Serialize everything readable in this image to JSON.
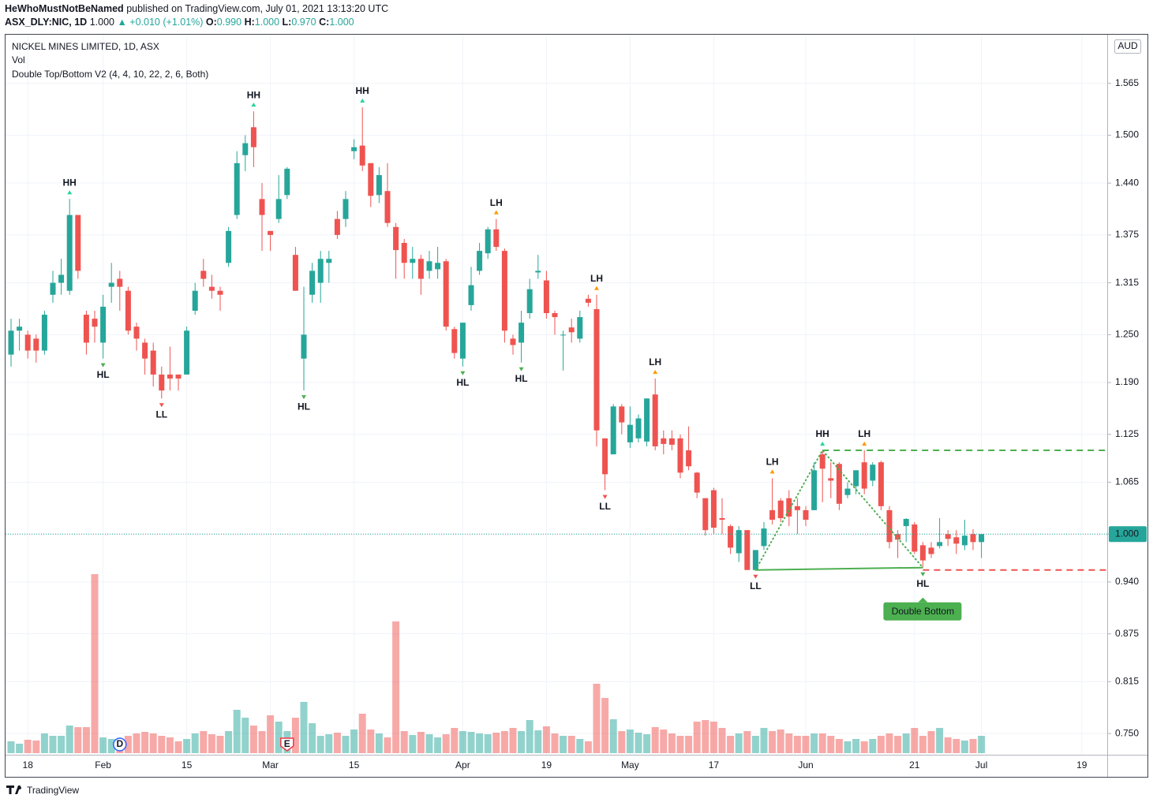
{
  "header": {
    "author": "HeWhoMustNotBeNamed",
    "published": "published on TradingView.com, July 01, 2021 13:13:20 UTC",
    "symbol": "ASX_DLY:NIC, 1D",
    "price": "1.000",
    "change": "▲ +0.010 (+1.01%)",
    "ohlc": [
      {
        "key": "O:",
        "value": "0.990"
      },
      {
        "key": "H:",
        "value": "1.000"
      },
      {
        "key": "L:",
        "value": "0.970"
      },
      {
        "key": "C:",
        "value": "1.000"
      }
    ]
  },
  "footer": "TradingView",
  "chart_data": {
    "type": "candlestick",
    "title": "NICKEL MINES LIMITED, 1D, ASX",
    "volume_label": "Vol",
    "indicator_label": "Double Top/Bottom V2 (4, 4, 10, 22, 2, 6, Both)",
    "currency": "AUD",
    "up_color": "#26a69a",
    "down_color": "#ef5350",
    "grid": true,
    "categories": [
      null,
      null,
      "18",
      null,
      null,
      null,
      null,
      null,
      null,
      null,
      null,
      "Feb",
      null,
      null,
      null,
      null,
      null,
      null,
      null,
      null,
      null,
      "15",
      null,
      null,
      null,
      null,
      null,
      null,
      null,
      null,
      null,
      "Mar",
      null,
      null,
      null,
      null,
      null,
      null,
      null,
      null,
      null,
      "15",
      null,
      null,
      null,
      null,
      null,
      null,
      null,
      null,
      null,
      null,
      null,
      null,
      "Apr",
      null,
      null,
      null,
      null,
      null,
      null,
      null,
      null,
      null,
      "19",
      null,
      null,
      null,
      null,
      null,
      null,
      null,
      null,
      null,
      "May",
      null,
      null,
      null,
      null,
      null,
      null,
      null,
      null,
      null,
      "17",
      null,
      null,
      null,
      null,
      null,
      null,
      null,
      null,
      null,
      null,
      "Jun",
      null,
      null,
      null,
      null,
      null,
      null,
      null,
      null,
      null,
      null,
      null,
      null,
      "21",
      null,
      null,
      null,
      null,
      null,
      null,
      null,
      "Jul",
      null,
      null,
      null,
      null,
      null,
      null,
      null,
      null,
      null,
      null,
      null,
      "19"
    ],
    "open": [
      1.225,
      1.255,
      1.25,
      1.245,
      1.23,
      1.3,
      1.315,
      1.305,
      1.4,
      1.275,
      1.27,
      1.24,
      1.31,
      1.32,
      1.305,
      1.26,
      1.24,
      1.23,
      1.2,
      1.2,
      1.2,
      1.2,
      1.28,
      1.33,
      1.31,
      1.305,
      1.34,
      1.4,
      1.475,
      1.51,
      1.42,
      1.38,
      1.395,
      1.425,
      1.35,
      1.22,
      1.3,
      1.315,
      1.34,
      1.395,
      1.395,
      1.48,
      1.487,
      1.465,
      1.425,
      1.43,
      1.385,
      1.365,
      1.34,
      1.345,
      1.33,
      1.332,
      1.342,
      1.257,
      1.22,
      1.287,
      1.33,
      1.352,
      1.382,
      1.355,
      1.245,
      1.24,
      1.277,
      1.328,
      1.318,
      1.277,
      1.249,
      1.259,
      1.245,
      1.295,
      1.282,
      1.12,
      1.1,
      1.16,
      1.115,
      1.12,
      1.116,
      1.175,
      1.12,
      1.12,
      1.12,
      1.105,
      1.077,
      1.045,
      1.055,
      1.02,
      1.01,
      0.976,
      1.005,
      0.955,
      0.985,
      1.03,
      1.042,
      1.045,
      1.035,
      1.03,
      1.03,
      1.1,
      1.07,
      1.088,
      1.049,
      1.06,
      1.09,
      1.067,
      1.09,
      1.03,
      1.0,
      1.01,
      1.012,
      0.986,
      0.983,
      0.985,
      1.0,
      0.996,
      0.986,
      1.0,
      0.99,
      null,
      null,
      null,
      null,
      null,
      null,
      null,
      null,
      null,
      null,
      null,
      null
    ],
    "high": [
      1.27,
      1.27,
      1.255,
      1.25,
      1.28,
      1.33,
      1.345,
      1.42,
      1.4,
      1.28,
      1.28,
      1.3,
      1.34,
      1.33,
      1.31,
      1.265,
      1.245,
      1.24,
      1.21,
      1.235,
      1.2,
      1.26,
      1.315,
      1.345,
      1.325,
      1.31,
      1.385,
      1.48,
      1.5,
      1.53,
      1.44,
      1.38,
      1.45,
      1.46,
      1.36,
      1.31,
      1.34,
      1.355,
      1.355,
      1.405,
      1.43,
      1.495,
      1.535,
      1.465,
      1.46,
      1.465,
      1.39,
      1.37,
      1.36,
      1.35,
      1.355,
      1.36,
      1.345,
      1.26,
      1.265,
      1.335,
      1.365,
      1.385,
      1.395,
      1.358,
      1.25,
      1.28,
      1.32,
      1.35,
      1.33,
      1.28,
      1.255,
      1.27,
      1.28,
      1.3,
      1.3,
      1.12,
      1.163,
      1.163,
      1.16,
      1.15,
      1.17,
      1.195,
      1.13,
      1.13,
      1.125,
      1.135,
      1.078,
      1.045,
      1.058,
      1.045,
      1.012,
      1.01,
      1.005,
      0.98,
      1.015,
      1.07,
      1.045,
      1.055,
      1.045,
      1.035,
      1.09,
      1.105,
      1.09,
      1.09,
      1.065,
      1.08,
      1.105,
      1.09,
      1.092,
      1.035,
      1.005,
      1.02,
      1.015,
      0.99,
      0.99,
      1.02,
      1.005,
      1.005,
      1.018,
      1.006,
      1.0,
      null,
      null,
      null,
      null,
      null,
      null,
      null,
      null,
      null,
      null,
      null,
      null
    ],
    "low": [
      1.21,
      1.23,
      1.22,
      1.215,
      1.225,
      1.29,
      1.3,
      1.3,
      1.32,
      1.225,
      1.24,
      1.22,
      1.29,
      1.28,
      1.25,
      1.23,
      1.2,
      1.185,
      1.17,
      1.18,
      1.18,
      1.2,
      1.275,
      1.31,
      1.295,
      1.28,
      1.335,
      1.395,
      1.455,
      1.46,
      1.355,
      1.355,
      1.39,
      1.42,
      1.305,
      1.18,
      1.29,
      1.29,
      1.315,
      1.37,
      1.385,
      1.47,
      1.455,
      1.41,
      1.415,
      1.385,
      1.32,
      1.32,
      1.32,
      1.3,
      1.32,
      1.32,
      1.255,
      1.22,
      1.21,
      1.28,
      1.325,
      1.345,
      1.355,
      1.24,
      1.225,
      1.215,
      1.27,
      1.32,
      1.27,
      1.25,
      1.205,
      1.24,
      1.24,
      1.285,
      1.11,
      1.055,
      1.1,
      1.125,
      1.108,
      1.115,
      1.11,
      1.105,
      1.1,
      1.105,
      1.07,
      1.08,
      1.045,
      0.998,
      1.0,
      1.0,
      0.975,
      0.965,
      0.955,
      0.955,
      0.98,
      1.012,
      1.015,
      1.01,
      1.0,
      1.01,
      1.03,
      1.04,
      1.045,
      1.03,
      1.045,
      1.05,
      1.05,
      1.06,
      1.03,
      0.982,
      0.97,
      0.99,
      0.975,
      0.958,
      0.97,
      0.982,
      0.985,
      0.975,
      0.98,
      0.98,
      0.97,
      null,
      null,
      null,
      null,
      null,
      null,
      null,
      null,
      null,
      null,
      null,
      null
    ],
    "close": [
      1.255,
      1.26,
      1.23,
      1.23,
      1.275,
      1.315,
      1.325,
      1.4,
      1.33,
      1.24,
      1.26,
      1.285,
      1.315,
      1.31,
      1.255,
      1.245,
      1.22,
      1.2,
      1.18,
      1.195,
      1.195,
      1.255,
      1.305,
      1.32,
      1.305,
      1.3,
      1.38,
      1.465,
      1.49,
      1.485,
      1.4,
      1.375,
      1.42,
      1.458,
      1.305,
      1.25,
      1.33,
      1.345,
      1.345,
      1.375,
      1.42,
      1.485,
      1.462,
      1.424,
      1.45,
      1.39,
      1.356,
      1.34,
      1.345,
      1.32,
      1.342,
      1.34,
      1.26,
      1.227,
      1.265,
      1.312,
      1.355,
      1.382,
      1.36,
      1.255,
      1.237,
      1.265,
      1.307,
      1.33,
      1.277,
      1.272,
      1.25,
      1.253,
      1.272,
      1.29,
      1.13,
      1.075,
      1.16,
      1.14,
      1.137,
      1.145,
      1.17,
      1.11,
      1.113,
      1.112,
      1.077,
      1.085,
      1.052,
      1.005,
      1.008,
      1.018,
      0.983,
      1.005,
      0.955,
      0.98,
      1.007,
      1.018,
      1.02,
      1.022,
      1.03,
      1.018,
      1.08,
      1.082,
      1.067,
      1.038,
      1.057,
      1.08,
      1.057,
      1.087,
      1.035,
      0.99,
      0.993,
      1.019,
      0.978,
      0.967,
      0.975,
      0.99,
      0.994,
      0.988,
      0.998,
      0.99,
      1.0,
      null,
      null,
      null,
      null,
      null,
      null,
      null,
      null,
      null,
      null,
      null,
      null
    ],
    "volume": [
      15,
      12,
      17,
      16,
      25,
      22,
      22,
      35,
      33,
      33,
      227,
      20,
      18,
      18,
      22,
      25,
      27,
      25,
      22,
      20,
      15,
      18,
      25,
      28,
      24,
      22,
      28,
      55,
      45,
      35,
      28,
      48,
      40,
      28,
      45,
      65,
      38,
      22,
      24,
      26,
      22,
      30,
      50,
      30,
      25,
      20,
      167,
      28,
      23,
      27,
      24,
      20,
      24,
      32,
      28,
      27,
      25,
      24,
      26,
      28,
      32,
      28,
      42,
      29,
      34,
      25,
      22,
      22,
      18,
      15,
      88,
      70,
      43,
      28,
      30,
      26,
      24,
      33,
      30,
      25,
      22,
      22,
      40,
      42,
      40,
      32,
      22,
      25,
      28,
      22,
      32,
      28,
      30,
      25,
      22,
      22,
      25,
      25,
      22,
      18,
      15,
      18,
      15,
      18,
      22,
      25,
      22,
      25,
      32,
      22,
      28,
      32,
      20,
      18,
      16,
      18,
      22,
      null,
      null,
      null,
      null,
      null,
      null,
      null,
      null,
      null,
      null,
      null,
      null
    ],
    "ylim": [
      0.7234,
      1.626
    ],
    "yticks": [
      {
        "value": 0.75,
        "label": "0.750"
      },
      {
        "value": 0.815,
        "label": "0.815"
      },
      {
        "value": 0.875,
        "label": "0.875"
      },
      {
        "value": 0.94,
        "label": "0.940"
      },
      {
        "value": 1.0,
        "label": "1.000"
      },
      {
        "value": 1.065,
        "label": "1.065"
      },
      {
        "value": 1.125,
        "label": "1.125"
      },
      {
        "value": 1.19,
        "label": "1.190"
      },
      {
        "value": 1.25,
        "label": "1.250"
      },
      {
        "value": 1.315,
        "label": "1.315"
      },
      {
        "value": 1.375,
        "label": "1.375"
      },
      {
        "value": 1.44,
        "label": "1.440"
      },
      {
        "value": 1.5,
        "label": "1.500"
      },
      {
        "value": 1.565,
        "label": "1.565"
      }
    ],
    "last_price": {
      "value": 1.0,
      "label": "1.000"
    },
    "pivots": [
      {
        "label": "HH",
        "bar": 7,
        "position": "above",
        "color": "#22d69a"
      },
      {
        "label": "HL",
        "bar": 11,
        "position": "below",
        "color": "#4caf50"
      },
      {
        "label": "LL",
        "bar": 18,
        "position": "below",
        "color": "#ef5350"
      },
      {
        "label": "HH",
        "bar": 29,
        "position": "above",
        "color": "#22d69a"
      },
      {
        "label": "HL",
        "bar": 35,
        "position": "below",
        "color": "#4caf50"
      },
      {
        "label": "HH",
        "bar": 42,
        "position": "above",
        "color": "#22d69a"
      },
      {
        "label": "HL",
        "bar": 54,
        "position": "below",
        "color": "#4caf50"
      },
      {
        "label": "LH",
        "bar": 58,
        "position": "above",
        "color": "#ff9800"
      },
      {
        "label": "HL",
        "bar": 61,
        "position": "below",
        "color": "#4caf50"
      },
      {
        "label": "LH",
        "bar": 70,
        "position": "above",
        "color": "#ff9800"
      },
      {
        "label": "LL",
        "bar": 71,
        "position": "below",
        "color": "#ef5350"
      },
      {
        "label": "LH",
        "bar": 77,
        "position": "above",
        "color": "#ff9800"
      },
      {
        "label": "LL",
        "bar": 89,
        "position": "below",
        "color": "#ef5350"
      },
      {
        "label": "LH",
        "bar": 91,
        "position": "above",
        "color": "#ff9800"
      },
      {
        "label": "HH",
        "bar": 97,
        "position": "above",
        "color": "#22d69a"
      },
      {
        "label": "LH",
        "bar": 102,
        "position": "above",
        "color": "#ff9800"
      },
      {
        "label": "HL",
        "bar": 109,
        "position": "below",
        "color": "#4caf50"
      }
    ],
    "pattern": {
      "label": "Double Bottom",
      "bars": [
        89,
        97,
        109
      ],
      "color": "#4caf50",
      "stop_color": "#ef5350"
    },
    "events": [
      {
        "label": "D",
        "bar": 13,
        "color": "#2962ff"
      },
      {
        "label": "E",
        "bar": 33,
        "color": "#f23645"
      }
    ]
  }
}
